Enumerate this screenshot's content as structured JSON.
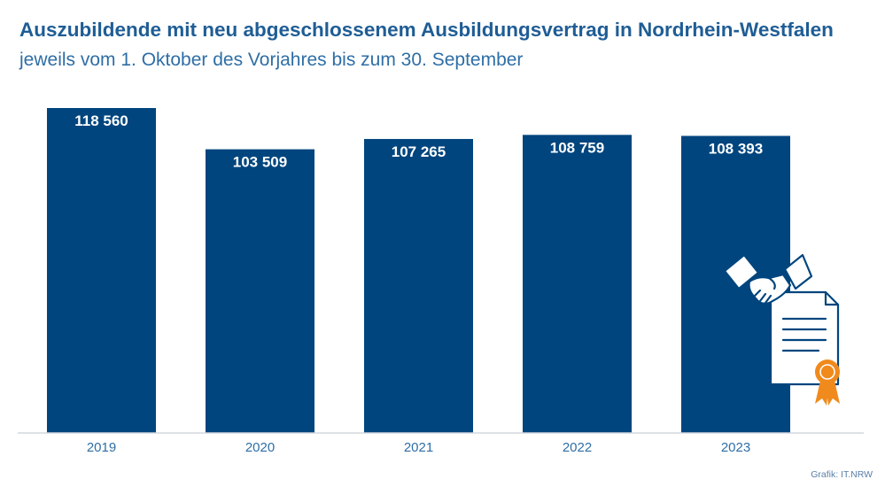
{
  "title": "Auszubildende mit neu abgeschlossenem Ausbildungsvertrag in Nordrhein-Westfalen",
  "subtitle": "jeweils vom 1. Oktober des Vorjahres bis zum 30. September",
  "credit": "Grafik: IT.NRW",
  "colors": {
    "bar": "#00457e",
    "title": "#1f5d95",
    "subtitle": "#2e6ea6",
    "axis": "#d3d8dd",
    "tick_text": "#2e6ea6",
    "value_text": "#ffffff",
    "icon_outline": "#00457e",
    "rosette": "#f08a1c"
  },
  "chart_data": {
    "type": "bar",
    "categories": [
      "2019",
      "2020",
      "2021",
      "2022",
      "2023"
    ],
    "values": [
      118560,
      103509,
      107265,
      108759,
      108393
    ],
    "value_labels": [
      "118 560",
      "103 509",
      "107 265",
      "108 759",
      "108 393"
    ],
    "ylim": [
      0,
      120000
    ],
    "grid": false,
    "legend": "none"
  },
  "decoration": {
    "icon": "handshake-contract-icon"
  }
}
